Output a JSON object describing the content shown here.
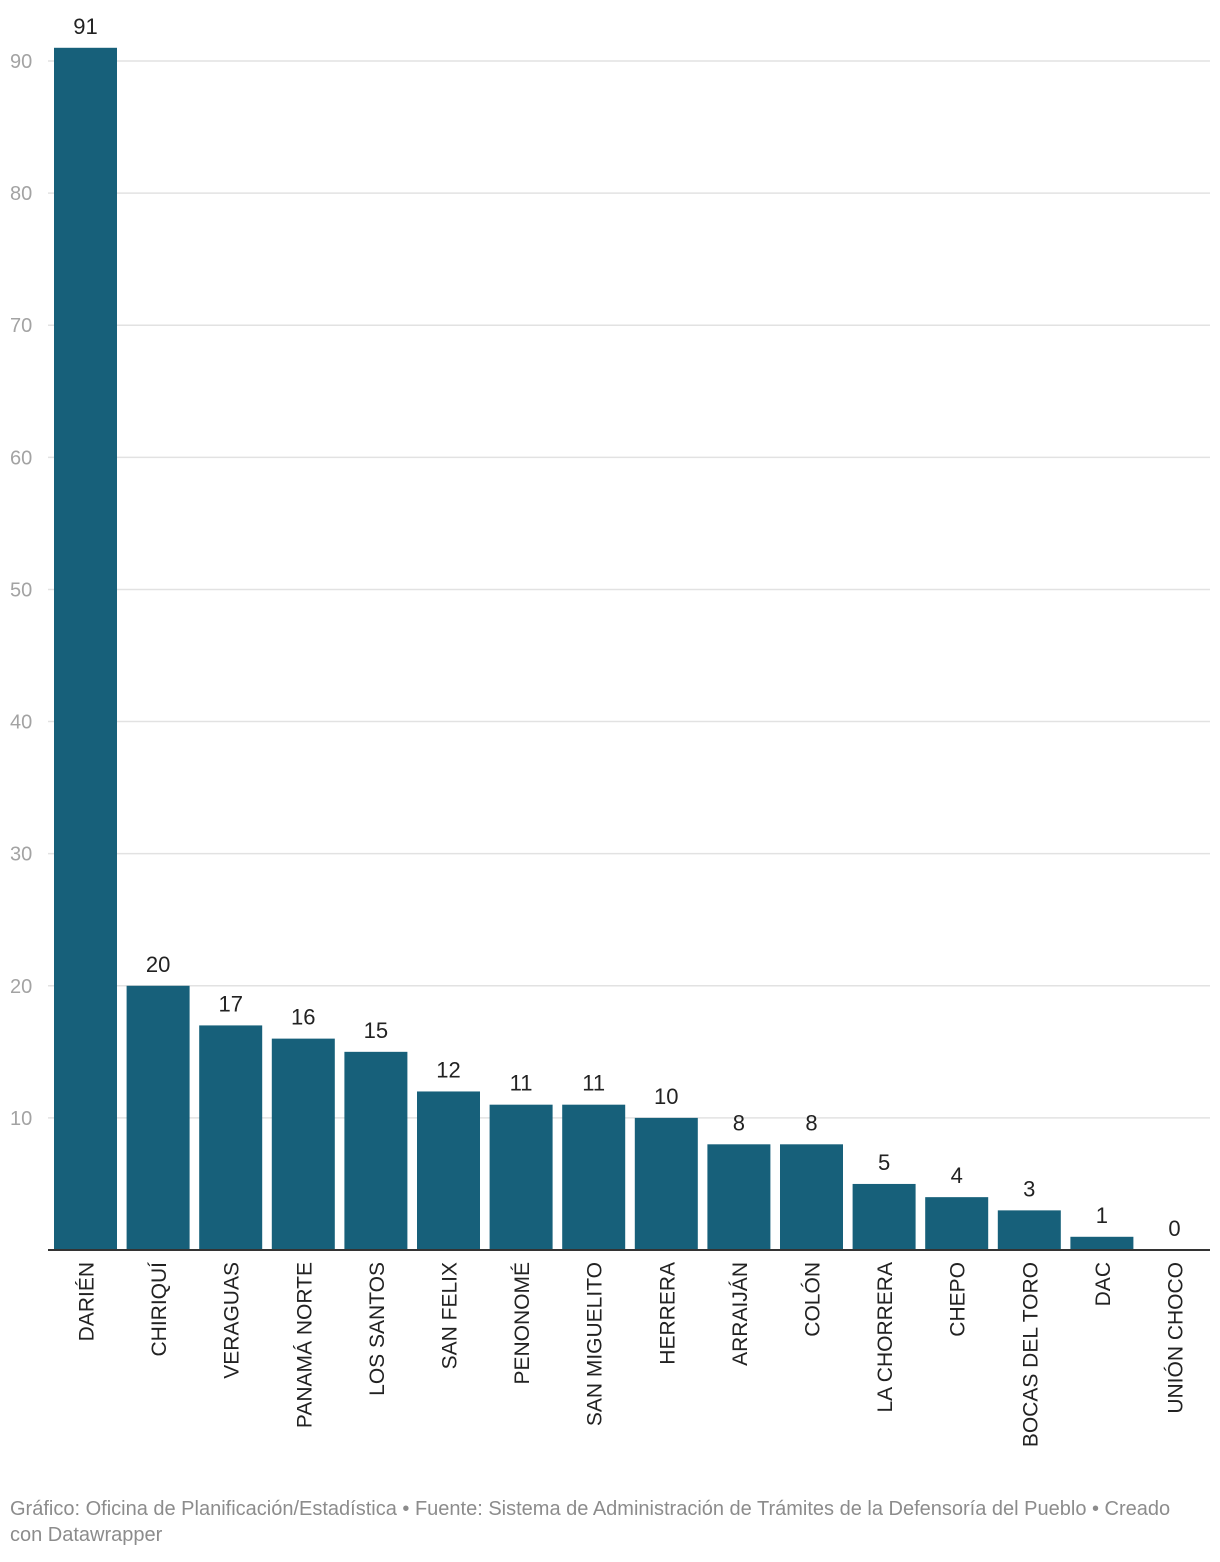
{
  "chart_data": {
    "type": "bar",
    "categories": [
      "DARIÉN",
      "CHIRIQUÍ",
      "VERAGUAS",
      "PANAMÁ NORTE",
      "LOS SANTOS",
      "SAN FELIX",
      "PENONOMÉ",
      "SAN MIGUELITO",
      "HERRERA",
      "ARRAIJÁN",
      "COLÓN",
      "LA CHORRERA",
      "CHEPO",
      "BOCAS DEL TORO",
      "DAC",
      "UNIÓN CHOCO"
    ],
    "values": [
      91,
      20,
      17,
      16,
      15,
      12,
      11,
      11,
      10,
      8,
      8,
      5,
      4,
      3,
      1,
      0
    ],
    "value_labels": [
      "91",
      "20",
      "17",
      "16",
      "15",
      "12",
      "11",
      "11",
      "10",
      "8",
      "8",
      "5",
      "4",
      "3",
      "1",
      "0"
    ],
    "yticks": [
      10,
      20,
      30,
      40,
      50,
      60,
      70,
      80,
      90
    ],
    "ytick_labels": [
      "10",
      "20",
      "30",
      "40",
      "50",
      "60",
      "70",
      "80",
      "90"
    ],
    "ylim": [
      0,
      90
    ],
    "grid": true,
    "bar_color": "#17607a"
  },
  "footer": {
    "text": "Gráfico: Oficina de Planificación/Estadística • Fuente: Sistema de Administración de Trámites de la Defensoría del Pueblo • Creado con Datawrapper"
  }
}
